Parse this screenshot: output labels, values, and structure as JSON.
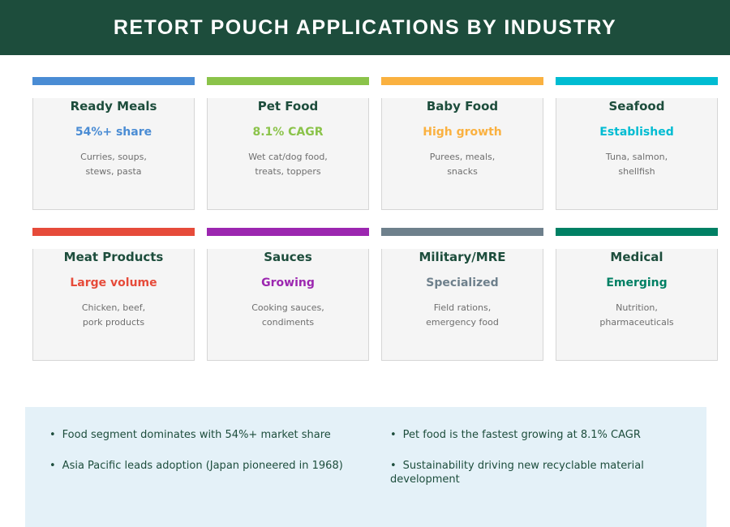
{
  "header": {
    "title": "RETORT POUCH APPLICATIONS BY INDUSTRY",
    "bg_color": "#1d4d3c",
    "text_color": "#ffffff"
  },
  "cards": [
    {
      "title": "Ready Meals",
      "subtitle": "54%+ share",
      "desc1": "Curries, soups,",
      "desc2": "stews, pasta",
      "accent": "#4a8cd4"
    },
    {
      "title": "Pet Food",
      "subtitle": "8.1% CAGR",
      "desc1": "Wet cat/dog food,",
      "desc2": "treats, toppers",
      "accent": "#8bc34a"
    },
    {
      "title": "Baby Food",
      "subtitle": "High growth",
      "desc1": "Purees, meals,",
      "desc2": "snacks",
      "accent": "#fab140"
    },
    {
      "title": "Seafood",
      "subtitle": "Established",
      "desc1": "Tuna, salmon,",
      "desc2": "shellfish",
      "accent": "#00bcd2"
    },
    {
      "title": "Meat Products",
      "subtitle": "Large volume",
      "desc1": "Chicken, beef,",
      "desc2": "pork products",
      "accent": "#e64b3a"
    },
    {
      "title": "Sauces",
      "subtitle": "Growing",
      "desc1": "Cooking sauces,",
      "desc2": "condiments",
      "accent": "#9c27b0"
    },
    {
      "title": "Military/MRE",
      "subtitle": "Specialized",
      "desc1": "Field rations,",
      "desc2": "emergency food",
      "accent": "#6e808c"
    },
    {
      "title": "Medical",
      "subtitle": "Emerging",
      "desc1": "Nutrition,",
      "desc2": "pharmaceuticals",
      "accent": "#008064"
    }
  ],
  "insights": {
    "bullet": "•",
    "bg_color": "#e4f1f8",
    "text_color": "#1d4d3c",
    "items": [
      "Food segment dominates with 54%+ market share",
      "Asia Pacific leads adoption (Japan pioneered in 1968)",
      "Pet food is the fastest growing at 8.1% CAGR",
      "Sustainability driving new recyclable material development"
    ]
  }
}
